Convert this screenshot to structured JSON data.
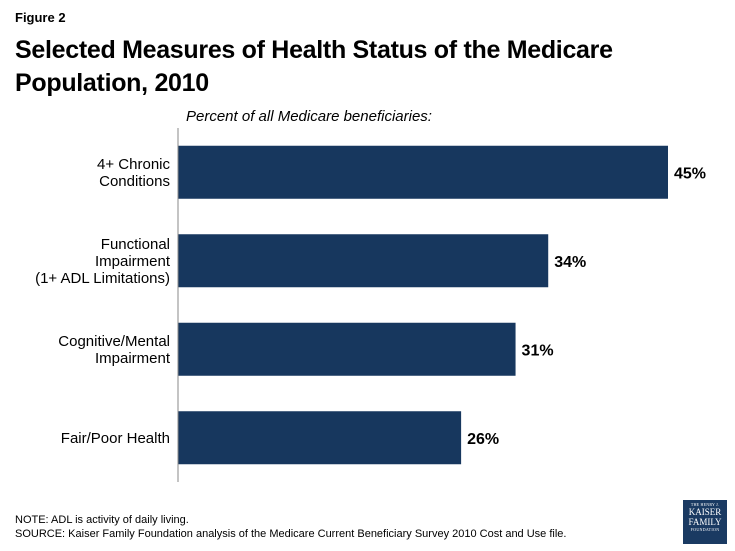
{
  "figure_label": "Figure 2",
  "title_line1": "Selected Measures of Health Status of the Medicare",
  "title_line2": "Population, 2010",
  "subtitle": "Percent of all Medicare beneficiaries:",
  "colors": {
    "bar": "#17375e",
    "axis": "#888888"
  },
  "chart_data": {
    "type": "bar",
    "orientation": "horizontal",
    "title": "Selected Measures of Health Status of the Medicare Population, 2010",
    "xlabel": "Percent of all Medicare beneficiaries:",
    "ylabel": "",
    "xlim": [
      0,
      45
    ],
    "categories": [
      [
        "4+ Chronic",
        "Conditions"
      ],
      [
        "Functional",
        "Impairment",
        "(1+ ADL Limitations)"
      ],
      [
        "Cognitive/Mental",
        "Impairment"
      ],
      [
        "Fair/Poor Health"
      ]
    ],
    "values": [
      45,
      34,
      31,
      26
    ],
    "value_labels": [
      "45%",
      "34%",
      "31%",
      "26%"
    ]
  },
  "notes": {
    "note": "NOTE: ADL is activity of daily living.",
    "source": "SOURCE: Kaiser Family Foundation analysis of the Medicare Current Beneficiary Survey 2010 Cost and Use file."
  },
  "logo": {
    "line1": "THE HENRY J.",
    "line2": "KAISER",
    "line3": "FAMILY",
    "line4": "FOUNDATION"
  }
}
